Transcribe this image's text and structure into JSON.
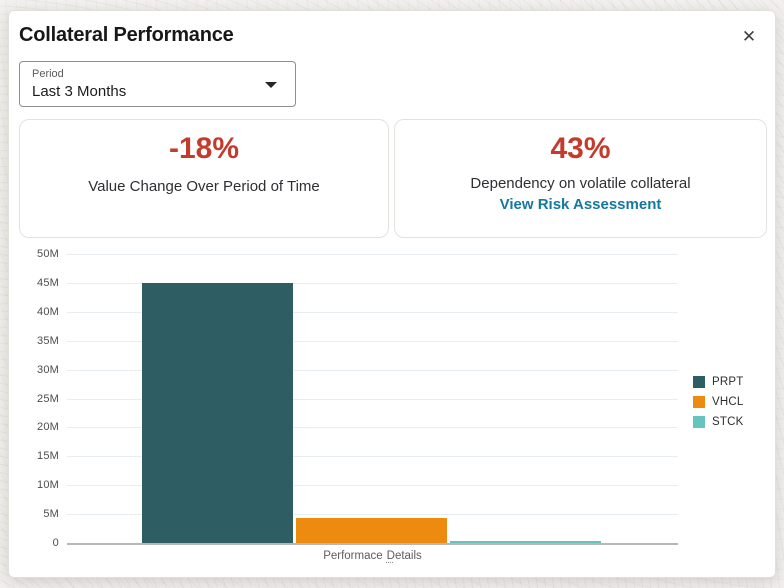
{
  "modal": {
    "title": "Collateral Performance",
    "close_label": "✕"
  },
  "period_select": {
    "label": "Period",
    "value": "Last 3 Months"
  },
  "stat_cards": {
    "value_change": {
      "value": "-18%",
      "description": "Value Change Over Period of Time"
    },
    "dependency": {
      "value": "43%",
      "description": "Dependency on volatile collateral",
      "link_label": "View Risk Assessment"
    }
  },
  "chart_data": {
    "type": "bar",
    "title": "",
    "xlabel": "Performace Details",
    "xlabel_words": [
      "Performace",
      "Details"
    ],
    "ylabel": "",
    "categories": [
      "Performace Details"
    ],
    "series": [
      {
        "name": "PRPT",
        "values": [
          45000000
        ],
        "color": "#2e5e64"
      },
      {
        "name": "VHCL",
        "values": [
          4300000
        ],
        "color": "#ed8a10"
      },
      {
        "name": "STCK",
        "values": [
          300000
        ],
        "color": "#66c4bd"
      }
    ],
    "ylim": [
      0,
      50000000
    ],
    "y_tick_labels": [
      "50M",
      "45M",
      "40M",
      "35M",
      "30M",
      "25M",
      "20M",
      "15M",
      "10M",
      "5M",
      "0"
    ],
    "grid": true,
    "legend_position": "right",
    "legend_entries": [
      "PRPT",
      "VHCL",
      "STCK"
    ]
  },
  "colors": {
    "accent_red": "#c33b2c",
    "link_blue": "#16789f",
    "grid_line": "#e7edf0",
    "axis_line": "#b4b8b8",
    "tick_text": "#4d4d50"
  }
}
